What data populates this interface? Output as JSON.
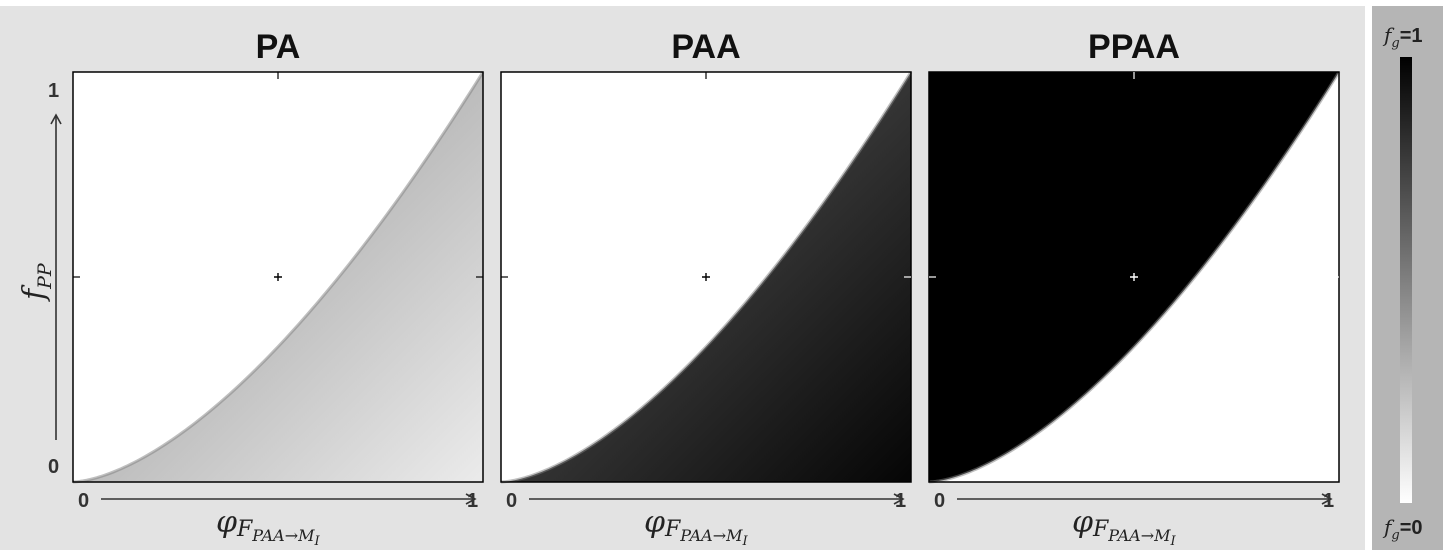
{
  "chart_data": [
    {
      "type": "heatmap",
      "title": "PA",
      "xlabel": "φF_PAA→M_I",
      "ylabel": "f_PP",
      "x_ticks": [
        "0",
        "1"
      ],
      "y_ticks": [
        "0",
        "1"
      ],
      "xlim": [
        0,
        1
      ],
      "ylim": [
        0,
        1
      ],
      "boundary": "f_PP = φ^1.6",
      "above_boundary_value": 0,
      "below_boundary_value_range": [
        0.45,
        0.08
      ],
      "center_marker": [
        0.5,
        0.5
      ],
      "colormap": "f_g: 0 = white, 1 = black"
    },
    {
      "type": "heatmap",
      "title": "PAA",
      "xlabel": "φF_PAA→M_I",
      "x_ticks": [
        "0",
        "1"
      ],
      "xlim": [
        0,
        1
      ],
      "ylim": [
        0,
        1
      ],
      "boundary": "f_PP = φ^1.6",
      "above_boundary_value": 0,
      "below_boundary_value_range": [
        0.6,
        0.98
      ],
      "center_marker": [
        0.5,
        0.5
      ],
      "colormap": "f_g: 0 = white, 1 = black"
    },
    {
      "type": "heatmap",
      "title": "PPAA",
      "xlabel": "φF_PAA→M_I",
      "x_ticks": [
        "0",
        "1"
      ],
      "xlim": [
        0,
        1
      ],
      "ylim": [
        0,
        1
      ],
      "boundary": "f_PP = φ^1.6",
      "above_boundary_value": 1,
      "below_boundary_value_range": [
        0,
        0
      ],
      "center_marker": [
        0.5,
        0.5
      ],
      "colormap": "f_g: 0 = white, 1 = black"
    }
  ],
  "colorbar": {
    "top_label_symbol": "f",
    "top_label_sub": "g",
    "top_label_value": "=1",
    "bottom_label_symbol": "f",
    "bottom_label_sub": "g",
    "bottom_label_value": "=0",
    "range": [
      0,
      1
    ]
  },
  "axis": {
    "x_symbol": "φ",
    "x_sub": "F",
    "x_subsub": "PAA→M",
    "x_subsubsub": "I",
    "y_symbol": "f",
    "y_sub": "PP"
  },
  "colors": {
    "background": "#e3e3e3",
    "colorbar_background": "#b5b5b5",
    "frame": "#000000"
  }
}
